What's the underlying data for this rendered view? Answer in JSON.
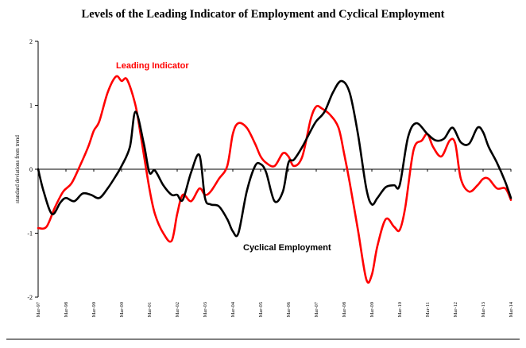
{
  "chart_data": {
    "type": "line",
    "title": "Levels of the Leading Indicator of Employment and Cyclical Employment",
    "xlabel": "",
    "ylabel": "standard deviations from trend",
    "ylim": [
      -2,
      2
    ],
    "yticks": [
      2,
      1,
      0,
      -1,
      -2
    ],
    "ytick_labels": [
      "2",
      "1",
      "0",
      "-1",
      "-2"
    ],
    "x_tick_labels": [
      "Mar-97",
      "Mar-98",
      "Mar-99",
      "Mar-00",
      "Mar-01",
      "Mar-02",
      "Mar-03",
      "Mar-04",
      "Mar-05",
      "Mar-06",
      "Mar-07",
      "Mar-08",
      "Mar-09",
      "Mar-10",
      "Mar-11",
      "Mar-12",
      "Mar-13",
      "Mar-14"
    ],
    "x_unit": "years since Mar-97",
    "annotations": [
      {
        "text": "Leading Indicator",
        "series": "Leading Indicator"
      },
      {
        "text": "Cyclical Employment",
        "series": "Cyclical Employment"
      }
    ],
    "series": [
      {
        "name": "Leading Indicator",
        "color": "#ff0000",
        "x": [
          0,
          0.3,
          0.6,
          0.9,
          1.2,
          1.5,
          1.8,
          2.0,
          2.2,
          2.5,
          2.8,
          3.0,
          3.2,
          3.5,
          3.7,
          4.0,
          4.2,
          4.5,
          4.8,
          5.0,
          5.2,
          5.5,
          5.8,
          6.0,
          6.2,
          6.5,
          6.8,
          7.0,
          7.2,
          7.5,
          7.8,
          8.0,
          8.2,
          8.5,
          8.8,
          9.0,
          9.2,
          9.5,
          9.8,
          10.0,
          10.2,
          10.5,
          10.8,
          11.0,
          11.2,
          11.5,
          11.8,
          12.0,
          12.2,
          12.5,
          12.8,
          13.0,
          13.2,
          13.5,
          13.8,
          14.0,
          14.2,
          14.5,
          14.8,
          15.0,
          15.2,
          15.5,
          15.8,
          16.0,
          16.2,
          16.5,
          16.8,
          17.0
        ],
        "values": [
          -0.92,
          -0.9,
          -0.6,
          -0.35,
          -0.22,
          0.05,
          0.35,
          0.6,
          0.75,
          1.2,
          1.45,
          1.38,
          1.4,
          1.0,
          0.5,
          -0.3,
          -0.7,
          -1.0,
          -1.12,
          -0.7,
          -0.4,
          -0.5,
          -0.3,
          -0.4,
          -0.35,
          -0.15,
          0.05,
          0.55,
          0.72,
          0.65,
          0.4,
          0.2,
          0.1,
          0.05,
          0.25,
          0.2,
          0.05,
          0.2,
          0.78,
          0.98,
          0.95,
          0.85,
          0.65,
          0.25,
          -0.2,
          -0.95,
          -1.72,
          -1.65,
          -1.2,
          -0.78,
          -0.9,
          -0.95,
          -0.6,
          0.3,
          0.45,
          0.55,
          0.35,
          0.2,
          0.45,
          0.4,
          -0.15,
          -0.35,
          -0.25,
          -0.15,
          -0.15,
          -0.3,
          -0.3,
          -0.48
        ]
      },
      {
        "name": "Cyclical Employment",
        "color": "#000000",
        "x": [
          0,
          0.2,
          0.5,
          0.8,
          1.0,
          1.3,
          1.6,
          1.9,
          2.2,
          2.5,
          2.8,
          3.0,
          3.3,
          3.5,
          3.8,
          4.0,
          4.2,
          4.5,
          4.8,
          5.0,
          5.2,
          5.5,
          5.8,
          6.0,
          6.2,
          6.5,
          6.8,
          7.0,
          7.2,
          7.5,
          7.8,
          8.0,
          8.2,
          8.5,
          8.8,
          9.0,
          9.2,
          9.5,
          9.8,
          10.0,
          10.3,
          10.6,
          10.9,
          11.2,
          11.5,
          11.8,
          12.0,
          12.2,
          12.5,
          12.8,
          13.0,
          13.3,
          13.6,
          14.0,
          14.3,
          14.6,
          14.9,
          15.2,
          15.5,
          15.8,
          16.0,
          16.2,
          16.5,
          16.8,
          17.0
        ],
        "values": [
          0,
          -0.35,
          -0.7,
          -0.52,
          -0.45,
          -0.5,
          -0.38,
          -0.4,
          -0.45,
          -0.3,
          -0.1,
          0.05,
          0.35,
          0.9,
          0.4,
          -0.05,
          -0.02,
          -0.25,
          -0.4,
          -0.4,
          -0.48,
          -0.05,
          0.22,
          -0.45,
          -0.55,
          -0.58,
          -0.78,
          -0.97,
          -1.0,
          -0.35,
          0.05,
          0.08,
          -0.05,
          -0.5,
          -0.35,
          0.1,
          0.15,
          0.35,
          0.6,
          0.75,
          0.9,
          1.2,
          1.38,
          1.2,
          0.55,
          -0.3,
          -0.55,
          -0.45,
          -0.28,
          -0.25,
          -0.25,
          0.5,
          0.72,
          0.55,
          0.45,
          0.48,
          0.65,
          0.42,
          0.4,
          0.65,
          0.58,
          0.35,
          0.1,
          -0.2,
          -0.45
        ]
      }
    ]
  }
}
